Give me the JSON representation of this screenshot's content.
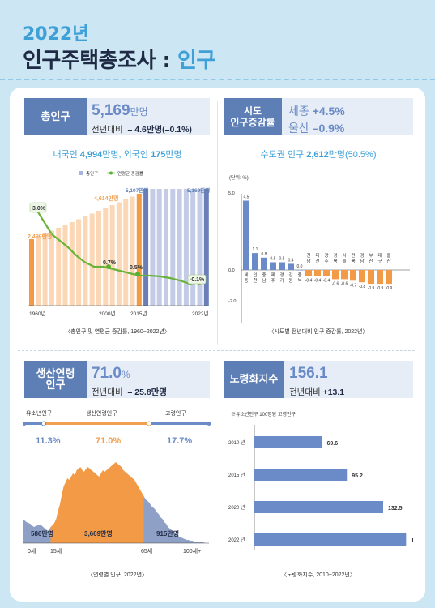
{
  "header": {
    "year": "2022년",
    "title_main": "인구주택총조사 : ",
    "title_accent": "인구"
  },
  "total_pop": {
    "tag": "총인구",
    "value": "5,169",
    "unit": "만명",
    "change_label": "전년대비",
    "change_value": "– 4.6만명(–0.1%)",
    "sub_pre": "내국인 ",
    "sub_native": "4,994",
    "sub_mid": "만명, 외국인 ",
    "sub_foreign": "175",
    "sub_post": "만명",
    "legend_bar": "총인구",
    "legend_line": "연평균 증감률",
    "caption": "〈총인구 및 연평균 증감률, 1960~2022년〉",
    "labels": {
      "p1960": "2,499만명",
      "p2000": "4,614만명",
      "p2015": "5,107만명",
      "p2022": "5,169만명",
      "r1": "3.0%",
      "r2": "0.7%",
      "r3": "0.5%",
      "r4": "-0.1%"
    },
    "xticks": [
      "1960년",
      "2000년",
      "2015년",
      "2022년"
    ]
  },
  "region": {
    "tag_line1": "시도",
    "tag_line2": "인구증감률",
    "sejong_label": "세종",
    "sejong_value": "+4.5%",
    "ulsan_label": "울산",
    "ulsan_value": "–0.9%",
    "sub_pre": "수도권 인구 ",
    "sub_value": "2,612",
    "sub_post": "만명(50.5%)",
    "unit_label": "(단위: %)",
    "caption": "〈시도별 전년대비 인구 증감률, 2022년〉"
  },
  "working": {
    "tag_line1": "생산연령",
    "tag_line2": "인구",
    "value": "71.0",
    "unit": "%",
    "change_label": "전년대비",
    "change_value": "– 25.8만명",
    "group_labels": [
      "유소년인구",
      "생산연령인구",
      "고령인구"
    ],
    "group_values": [
      "11.3%",
      "71.0%",
      "17.7%"
    ],
    "group_counts": [
      "586만명",
      "3,669만명",
      "915만명"
    ],
    "age_ticks": [
      "0세",
      "15세",
      "65세",
      "100세+"
    ],
    "caption": "〈연령별 인구, 2022년〉"
  },
  "aging": {
    "tag": "노령화지수",
    "value": "156.1",
    "change_label": "전년대비",
    "change_value": "+13.1",
    "note": "※유소년인구 100명당 고령인구",
    "caption": "〈노령화지수, 2010~2022년〉"
  },
  "chart_data": [
    {
      "type": "bar",
      "title": "총인구 및 연평균 증감률, 1960~2022년",
      "categories": [
        "1960년",
        "2000년",
        "2015년",
        "2022년"
      ],
      "series": [
        {
          "name": "총인구",
          "values": [
            2499,
            4614,
            5107,
            5169
          ]
        },
        {
          "name": "연평균 증감률",
          "values": [
            3.0,
            0.7,
            0.5,
            -0.1
          ]
        }
      ]
    },
    {
      "type": "bar",
      "title": "시도별 전년대비 인구 증감률, 2022년",
      "categories": [
        "세종",
        "인천",
        "충남",
        "제주",
        "경기",
        "강원",
        "충북",
        "전남",
        "대전",
        "광주",
        "경북",
        "서울",
        "전북",
        "경남",
        "부산",
        "대구",
        "울산"
      ],
      "values": [
        4.5,
        1.1,
        0.8,
        0.5,
        0.5,
        0.4,
        0.0,
        -0.4,
        -0.4,
        -0.4,
        -0.6,
        -0.6,
        -0.7,
        -0.8,
        -0.9,
        -0.9,
        -0.9
      ],
      "ylim": [
        -2.0,
        5.0
      ],
      "yticks": [
        "5.0",
        "0.0",
        "-2.0"
      ]
    },
    {
      "type": "bar",
      "title": "노령화지수, 2010~2022년",
      "categories": [
        "2010 년",
        "2015 년",
        "2020 년",
        "2022 년"
      ],
      "values": [
        69.6,
        95.2,
        132.5,
        156.1
      ]
    }
  ]
}
